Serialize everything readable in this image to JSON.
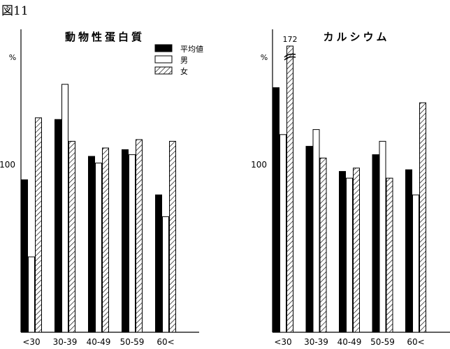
{
  "figure_label": "図11",
  "chart_data": [
    {
      "type": "bar",
      "title": "動物性蛋白質",
      "ylabel": "%",
      "ytick_labels": [
        "100"
      ],
      "yticks": [
        100
      ],
      "categories": [
        "<30",
        "30-39",
        "40-49",
        "50-59",
        "60<"
      ],
      "series": [
        {
          "name": "平均値",
          "fill": "solid",
          "values": [
            91,
            127,
            105,
            109,
            82
          ]
        },
        {
          "name": "男",
          "fill": "white",
          "values": [
            45,
            148,
            101,
            106,
            69
          ]
        },
        {
          "name": "女",
          "fill": "hatched",
          "values": [
            128,
            114,
            110,
            115,
            114
          ]
        }
      ],
      "legend": "top-right",
      "grid": false
    },
    {
      "type": "bar",
      "title": "カルシウム",
      "ylabel": "%",
      "ytick_labels": [
        "100"
      ],
      "yticks": [
        100
      ],
      "categories": [
        "<30",
        "30-39",
        "40-49",
        "50-59",
        "60<"
      ],
      "series": [
        {
          "name": "平均値",
          "fill": "solid",
          "values": [
            146,
            111,
            96,
            106,
            97
          ]
        },
        {
          "name": "男",
          "fill": "white",
          "values": [
            118,
            121,
            92,
            114,
            82
          ]
        },
        {
          "name": "女",
          "fill": "hatched",
          "values": [
            172,
            104,
            98,
            92,
            137
          ]
        }
      ],
      "annotations": [
        "172"
      ],
      "broken_bar_label": "172",
      "legend": "none",
      "grid": false
    }
  ],
  "colors": {
    "ink": "#000000",
    "paper": "#ffffff"
  }
}
